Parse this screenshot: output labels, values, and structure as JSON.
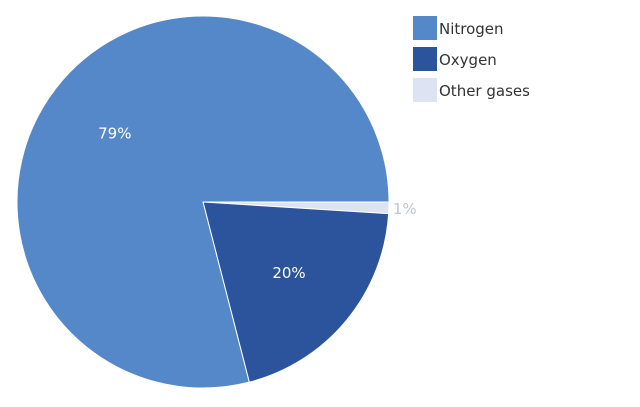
{
  "chart_data": {
    "type": "pie",
    "title": "",
    "slices": [
      {
        "label": "Nitrogen",
        "value": 79,
        "data_label": "79%",
        "color": "#5588c8",
        "label_color": "#ffffff"
      },
      {
        "label": "Oxygen",
        "value": 20,
        "data_label": "20%",
        "color": "#2c549c",
        "label_color": "#ffffff"
      },
      {
        "label": "Other gases",
        "value": 1,
        "data_label": "1%",
        "color": "#dde3f2",
        "label_color": "#c0c4cc"
      }
    ],
    "legend_position": "top-right",
    "start": "3 o'clock, clockwise order: Other gases, Oxygen, Nitrogen"
  }
}
